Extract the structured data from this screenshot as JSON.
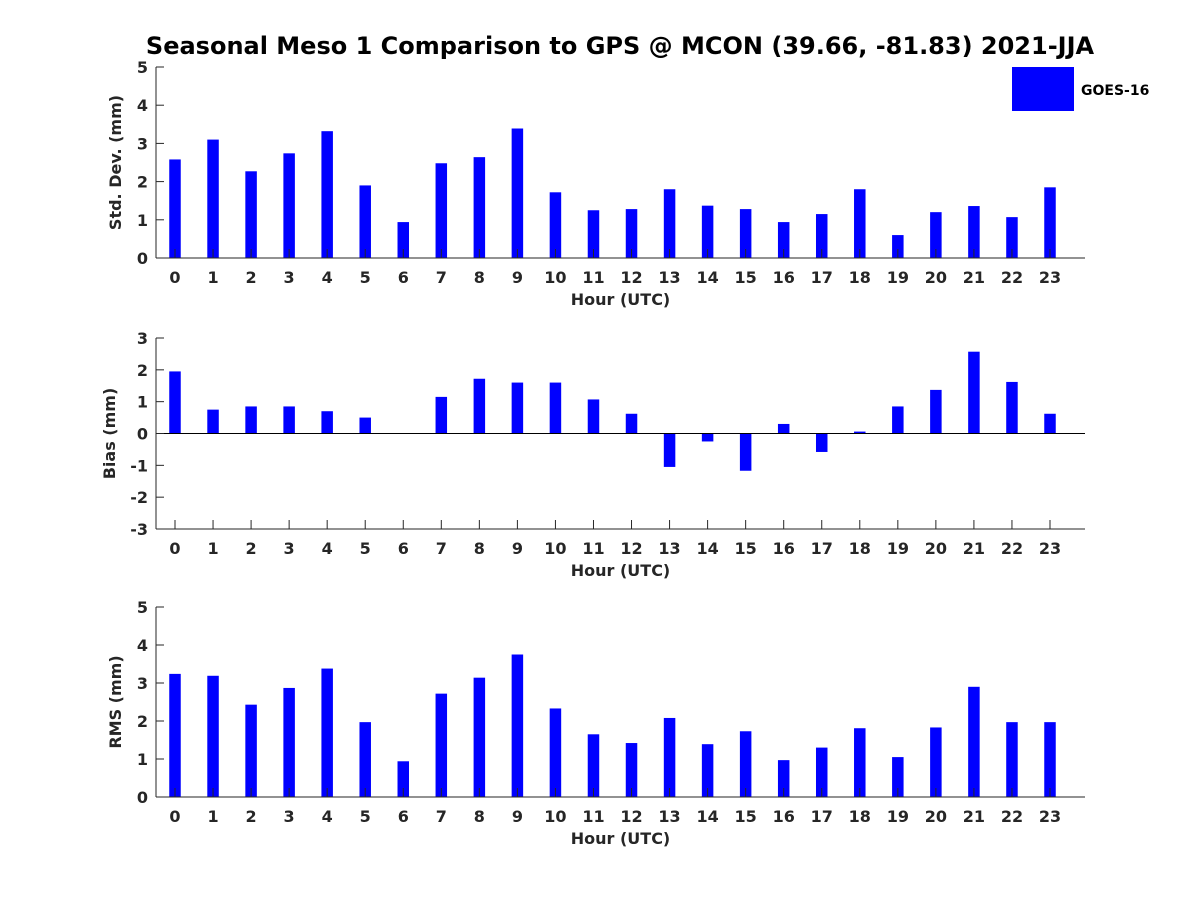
{
  "chart_data": {
    "title": "Seasonal Meso 1 Comparison to GPS @ MCON (39.66, -81.83) 2021-JJA",
    "type": "bar",
    "legend": {
      "entries": [
        "GOES-16"
      ],
      "placement": "top-right"
    },
    "bar_color": "#0000ff",
    "panels": [
      {
        "type": "bar",
        "categories": [
          "0",
          "1",
          "2",
          "3",
          "4",
          "5",
          "6",
          "7",
          "8",
          "9",
          "10",
          "11",
          "12",
          "13",
          "14",
          "15",
          "16",
          "17",
          "18",
          "19",
          "20",
          "21",
          "22",
          "23"
        ],
        "series": [
          {
            "name": "GOES-16",
            "values": [
              2.58,
              3.1,
              2.27,
              2.74,
              3.32,
              1.9,
              0.94,
              2.48,
              2.64,
              3.39,
              1.72,
              1.25,
              1.28,
              1.8,
              1.37,
              1.28,
              0.94,
              1.15,
              1.8,
              0.6,
              1.2,
              1.36,
              1.07,
              1.85
            ]
          }
        ],
        "xlabel": "Hour (UTC)",
        "ylabel": "Std. Dev. (mm)",
        "ylim": [
          0,
          5
        ],
        "yticks": [
          "0",
          "1",
          "2",
          "3",
          "4",
          "5"
        ]
      },
      {
        "type": "bar",
        "categories": [
          "0",
          "1",
          "2",
          "3",
          "4",
          "5",
          "6",
          "7",
          "8",
          "9",
          "10",
          "11",
          "12",
          "13",
          "14",
          "15",
          "16",
          "17",
          "18",
          "19",
          "20",
          "21",
          "22",
          "23"
        ],
        "series": [
          {
            "name": "GOES-16",
            "values": [
              1.95,
              0.75,
              0.85,
              0.85,
              0.7,
              0.5,
              0.0,
              1.15,
              1.72,
              1.6,
              1.6,
              1.07,
              0.62,
              -1.05,
              -0.25,
              -1.17,
              0.3,
              -0.58,
              0.06,
              0.85,
              1.37,
              2.57,
              1.62,
              0.62
            ]
          }
        ],
        "xlabel": "Hour (UTC)",
        "ylabel": "Bias (mm)",
        "ylim": [
          -3,
          3
        ],
        "yticks": [
          "-3",
          "-2",
          "-1",
          "0",
          "1",
          "2",
          "3"
        ]
      },
      {
        "type": "bar",
        "categories": [
          "0",
          "1",
          "2",
          "3",
          "4",
          "5",
          "6",
          "7",
          "8",
          "9",
          "10",
          "11",
          "12",
          "13",
          "14",
          "15",
          "16",
          "17",
          "18",
          "19",
          "20",
          "21",
          "22",
          "23"
        ],
        "series": [
          {
            "name": "GOES-16",
            "values": [
              3.24,
              3.19,
              2.43,
              2.87,
              3.38,
              1.97,
              0.94,
              2.72,
              3.14,
              3.75,
              2.33,
              1.65,
              1.42,
              2.08,
              1.39,
              1.73,
              0.97,
              1.3,
              1.81,
              1.05,
              1.83,
              2.9,
              1.97,
              1.97
            ]
          }
        ],
        "xlabel": "Hour (UTC)",
        "ylabel": "RMS (mm)",
        "ylim": [
          0,
          5
        ],
        "yticks": [
          "0",
          "1",
          "2",
          "3",
          "4",
          "5"
        ]
      }
    ]
  }
}
